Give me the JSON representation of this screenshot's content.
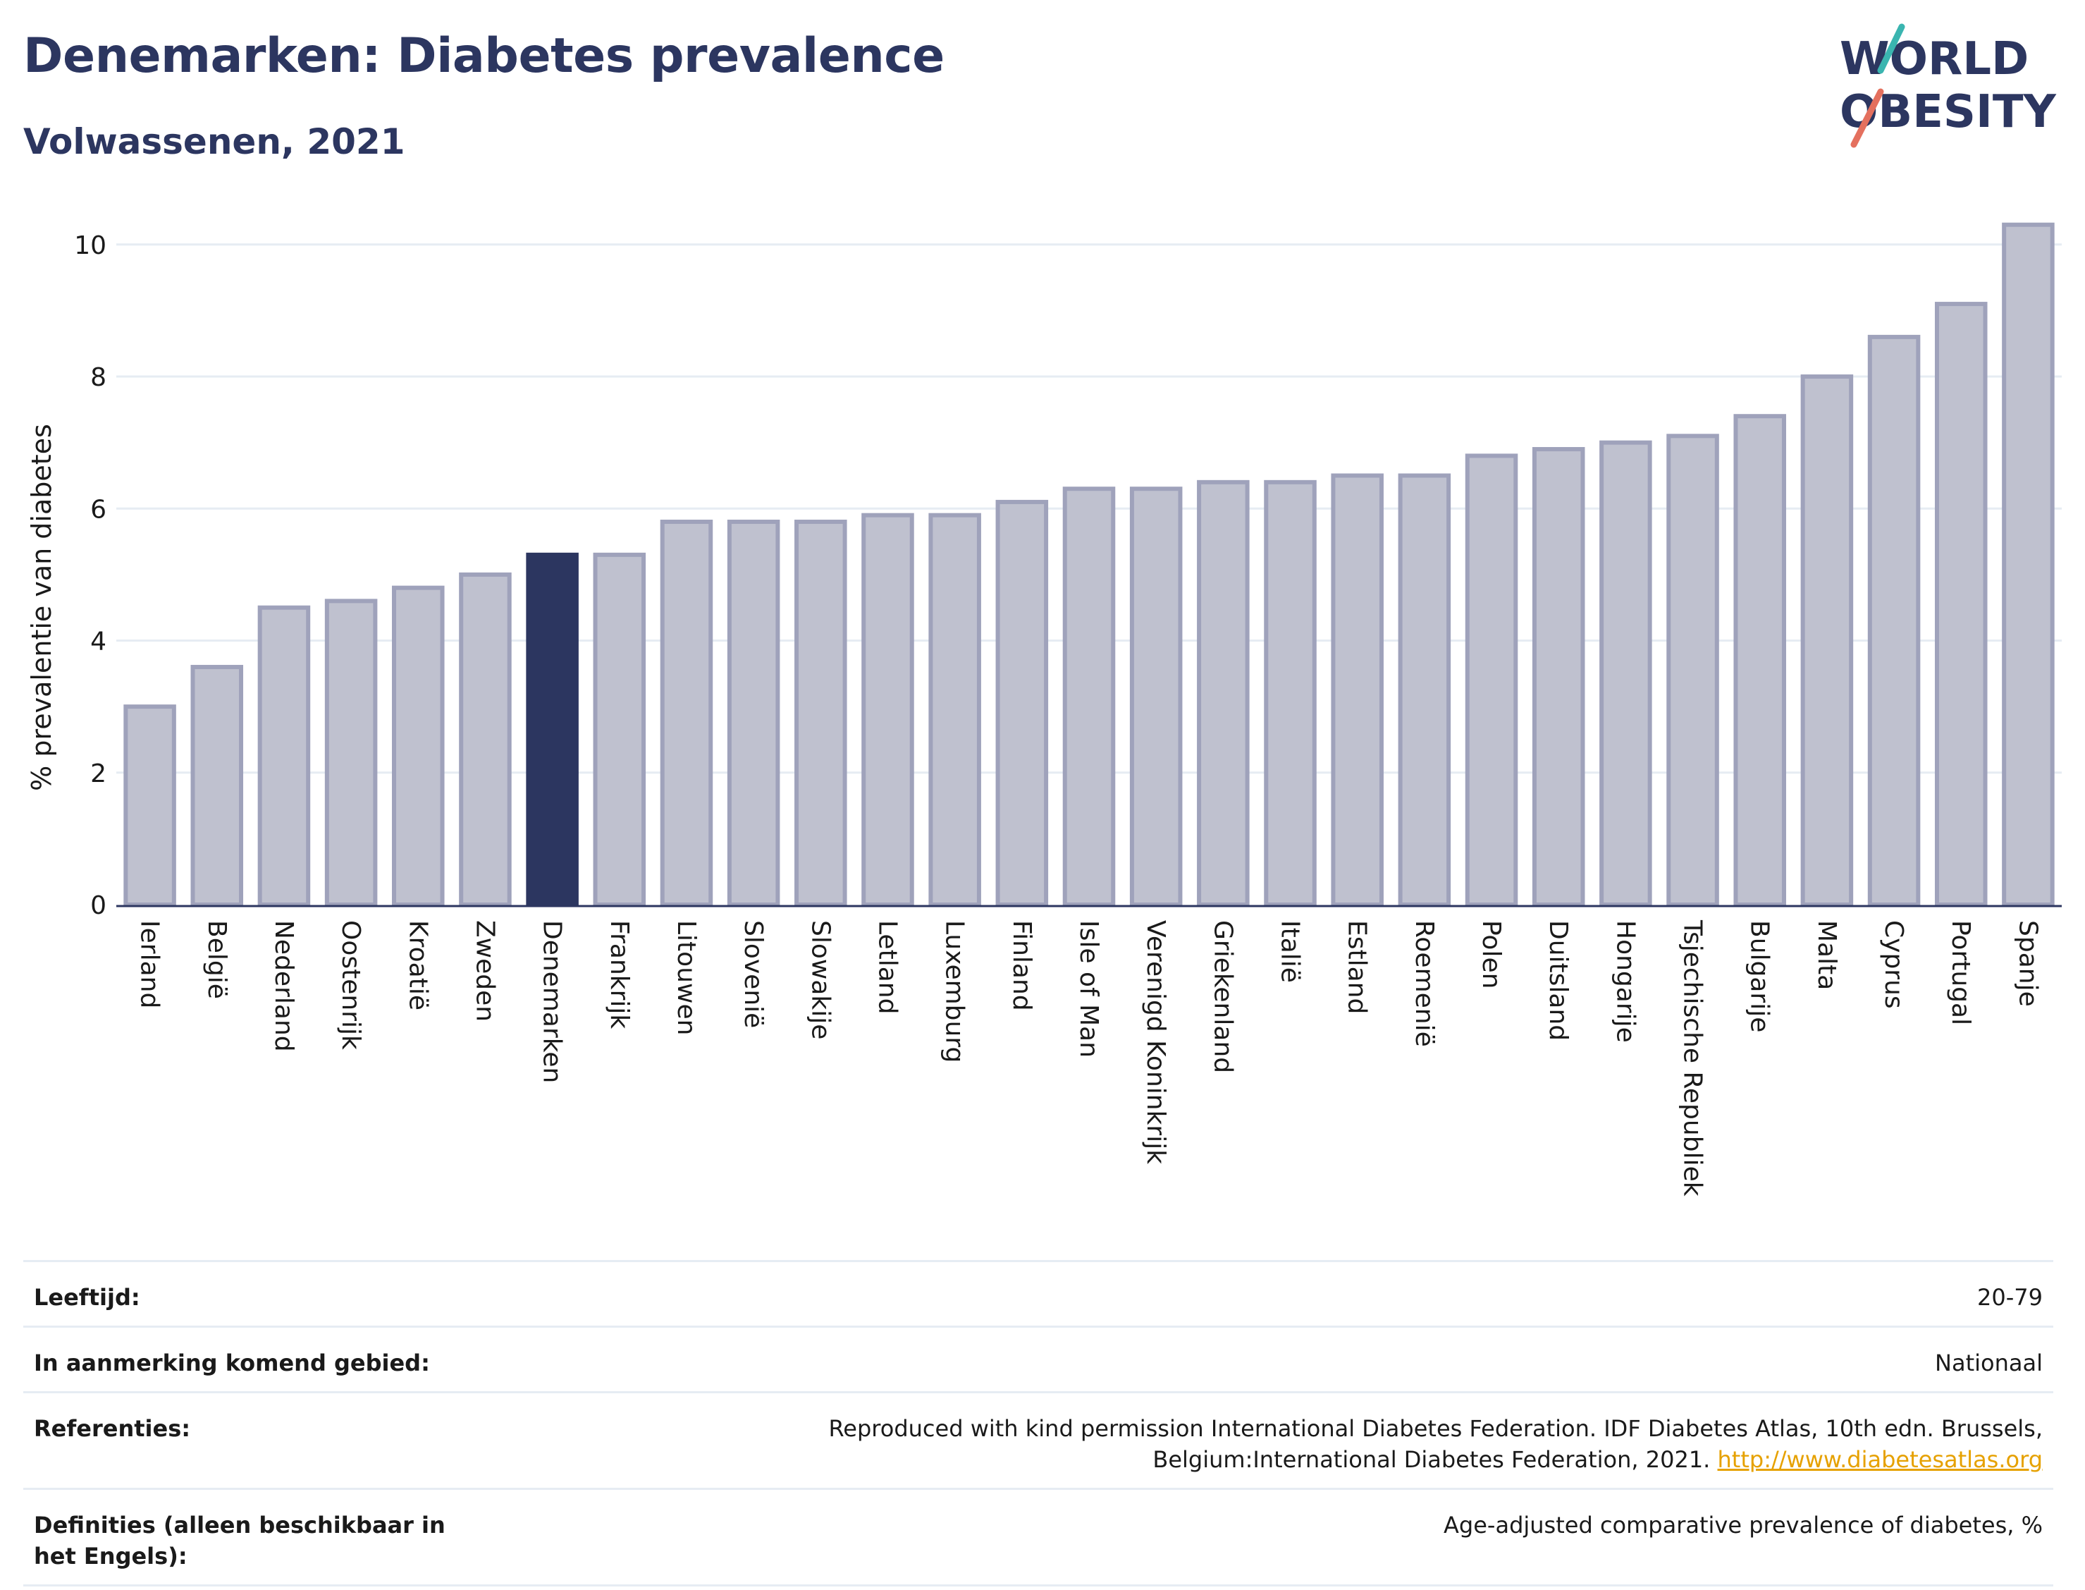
{
  "header": {
    "title": "Denemarken: Diabetes prevalence",
    "subtitle": "Volwassenen, 2021"
  },
  "logo": {
    "line1": "WORLD",
    "line2": "OBESITY"
  },
  "colors": {
    "highlight": "#2c3660",
    "bar_fill": "#bfc1cf",
    "bar_stroke": "#9fa2bb",
    "text": "#2c3660",
    "link": "#e6a100",
    "accent_teal": "#3ab5b0",
    "accent_red": "#e4705e"
  },
  "chart_data": {
    "type": "bar",
    "ylabel": "% prevalentie van diabetes",
    "xlabel": "",
    "ylim": [
      0,
      10.5
    ],
    "yticks": [
      0,
      2,
      4,
      6,
      8,
      10
    ],
    "grid": true,
    "highlight": "Denemarken",
    "categories": [
      "Ierland",
      "België",
      "Nederland",
      "Oostenrijk",
      "Kroatië",
      "Zweden",
      "Denemarken",
      "Frankrijk",
      "Litouwen",
      "Slovenië",
      "Slowakije",
      "Letland",
      "Luxemburg",
      "Finland",
      "Isle of Man",
      "Verenigd Koninkrijk",
      "Griekenland",
      "Italië",
      "Estland",
      "Roemenië",
      "Polen",
      "Duitsland",
      "Hongarije",
      "Tsjechische Republiek",
      "Bulgarije",
      "Malta",
      "Cyprus",
      "Portugal",
      "Spanje"
    ],
    "values": [
      3.0,
      3.6,
      4.5,
      4.6,
      4.8,
      5.0,
      5.3,
      5.3,
      5.8,
      5.8,
      5.8,
      5.9,
      5.9,
      6.1,
      6.3,
      6.3,
      6.4,
      6.4,
      6.5,
      6.5,
      6.8,
      6.9,
      7.0,
      7.1,
      7.4,
      8.0,
      8.6,
      9.1,
      10.3
    ]
  },
  "meta": [
    {
      "key": "Leeftijd:",
      "value": "20-79"
    },
    {
      "key": "In aanmerking komend gebied:",
      "value": "Nationaal"
    },
    {
      "key": "Referenties:",
      "value": "Reproduced with kind permission International Diabetes Federation.  IDF Diabetes Atlas, 10th edn. Brussels, Belgium:International Diabetes Federation, 2021. ",
      "link": "http://www.diabetesatlas.org"
    },
    {
      "key": "Definities (alleen beschikbaar in het Engels):",
      "value": "Age-adjusted comparative prevalence of diabetes, %"
    }
  ]
}
